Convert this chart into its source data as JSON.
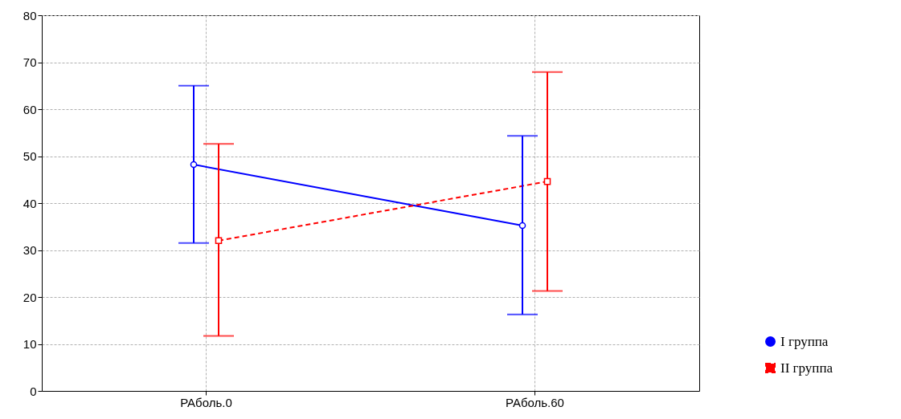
{
  "chart_data": {
    "type": "line",
    "categories": [
      "PAболь.0",
      "PAболь.60"
    ],
    "series": [
      {
        "name": "I группа",
        "color": "#0000ff",
        "marker": "circle",
        "line_style": "solid",
        "values": [
          48.2,
          35.2
        ],
        "errors": [
          [
            31.5,
            65.0
          ],
          [
            16.3,
            54.3
          ]
        ]
      },
      {
        "name": "II группа",
        "color": "#ff0000",
        "marker": "square",
        "line_style": "dashed",
        "values": [
          32.0,
          44.6
        ],
        "errors": [
          [
            11.7,
            52.6
          ],
          [
            21.3,
            67.9
          ]
        ]
      }
    ],
    "ylim": [
      0,
      80
    ],
    "yticks": [
      0,
      10,
      20,
      30,
      40,
      50,
      60,
      70,
      80
    ],
    "grid": true,
    "legend": "bottom right"
  }
}
